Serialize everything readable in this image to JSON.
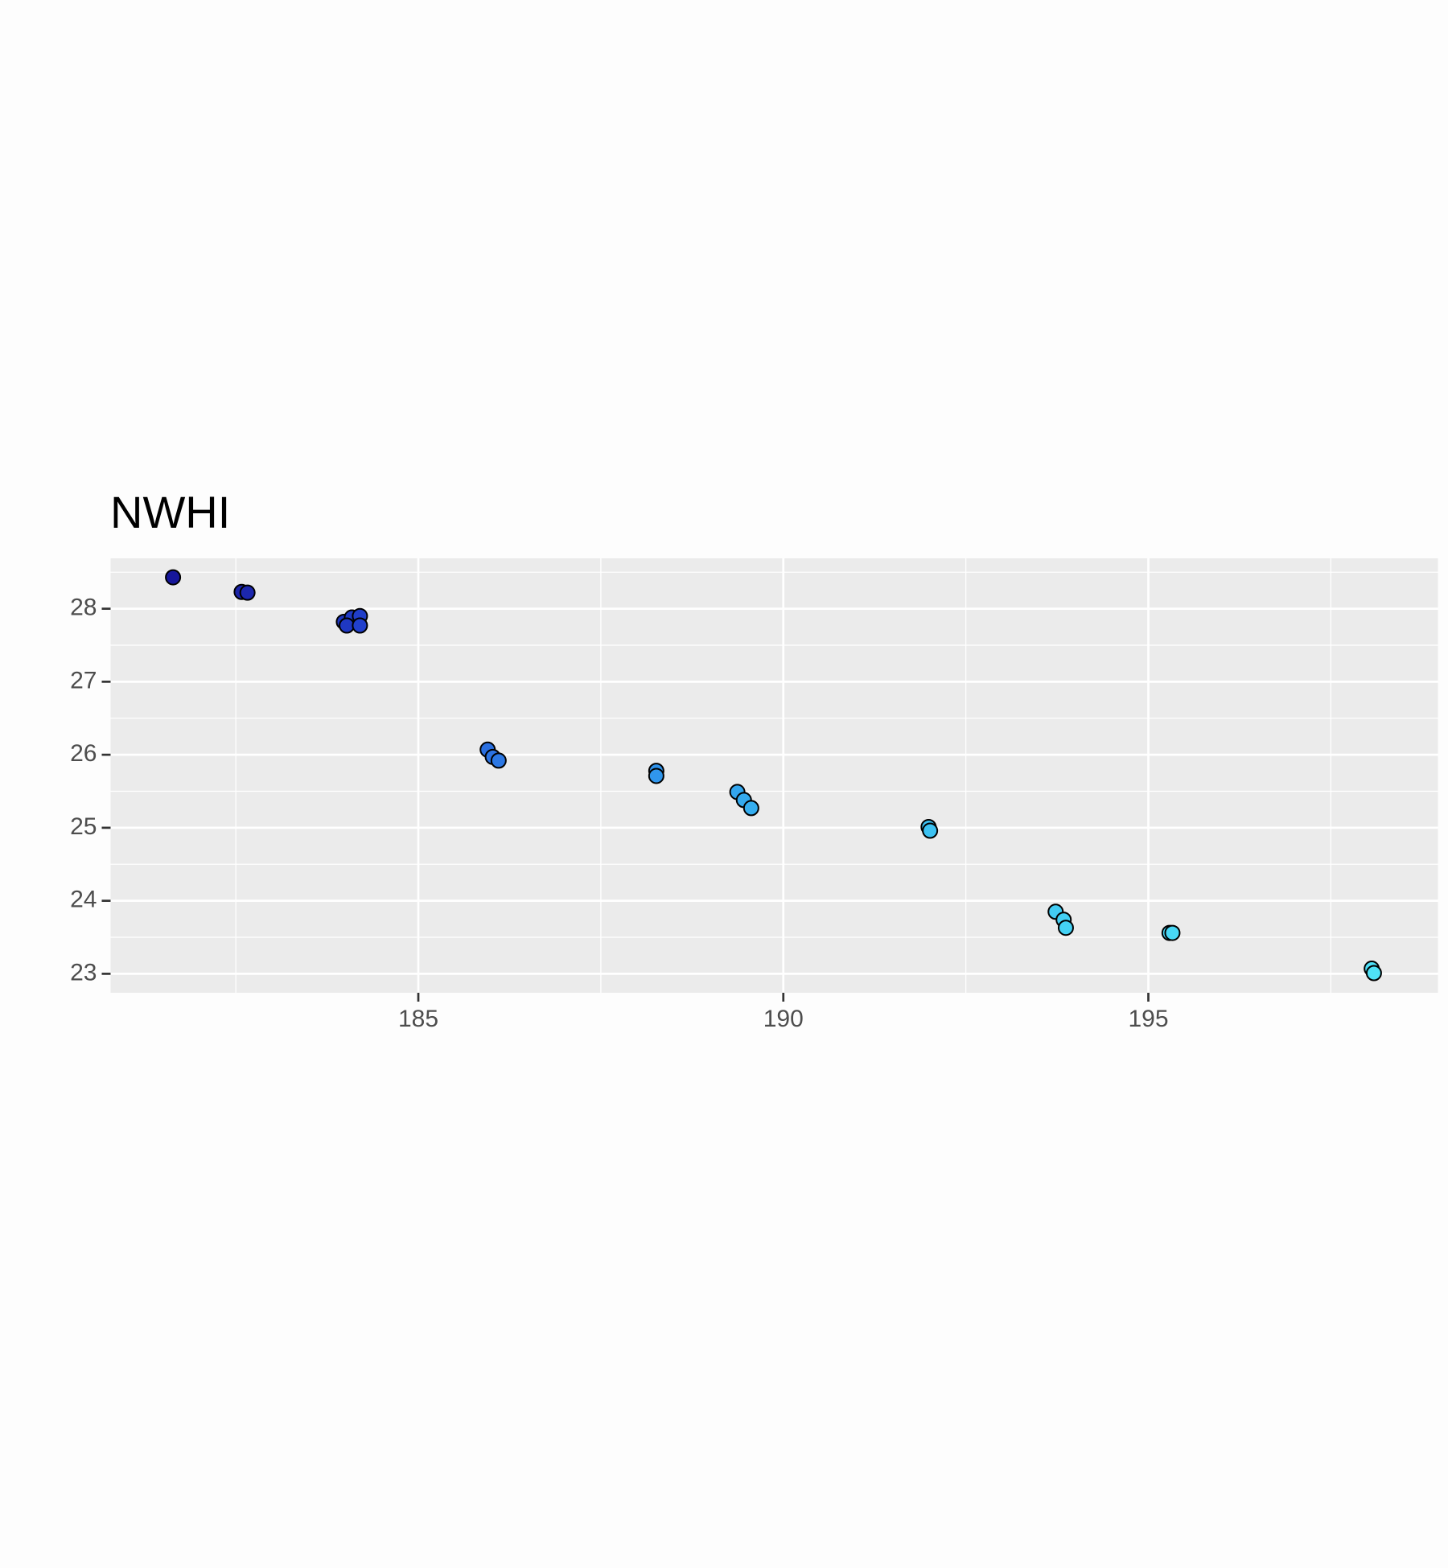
{
  "chart_data": {
    "type": "scatter",
    "title": "NWHI",
    "x": [
      181.64,
      182.58,
      182.66,
      183.98,
      184.09,
      184.2,
      184.02,
      184.2,
      185.95,
      186.02,
      186.1,
      188.26,
      188.26,
      189.37,
      189.46,
      189.56,
      191.99,
      192.01,
      193.73,
      193.84,
      193.87,
      195.29,
      195.33,
      198.06,
      198.09
    ],
    "y": [
      28.43,
      28.23,
      28.22,
      27.82,
      27.88,
      27.9,
      27.77,
      27.77,
      26.07,
      25.97,
      25.92,
      25.78,
      25.71,
      25.49,
      25.38,
      25.27,
      25.01,
      24.96,
      23.85,
      23.74,
      23.63,
      23.56,
      23.56,
      23.07,
      23.01
    ],
    "colors": [
      "#16169a",
      "#1b24a8",
      "#1c27ae",
      "#1e36c0",
      "#1f3ac4",
      "#203ec8",
      "#1f38c2",
      "#2140cc",
      "#2a6fe0",
      "#2b73e2",
      "#2c78e4",
      "#2f92ea",
      "#3096ec",
      "#33a6ee",
      "#34aaef",
      "#35aef0",
      "#3bc0f2",
      "#3cc2f2",
      "#42ccf4",
      "#43cff4",
      "#44d2f5",
      "#47d6f5",
      "#48d7f5",
      "#4ee0f7",
      "#4fe2f7"
    ],
    "xlim": [
      180.785,
      198.967
    ],
    "ylim": [
      22.74,
      28.69
    ],
    "xticks": [
      185,
      190,
      195
    ],
    "yticks": [
      23,
      24,
      25,
      26,
      27,
      28
    ],
    "x_minor_grid": [
      182.5,
      187.5,
      192.5,
      197.5
    ],
    "y_minor_grid": [
      23.5,
      24.5,
      25.5,
      26.5,
      27.5,
      28.5
    ],
    "grid": true
  }
}
